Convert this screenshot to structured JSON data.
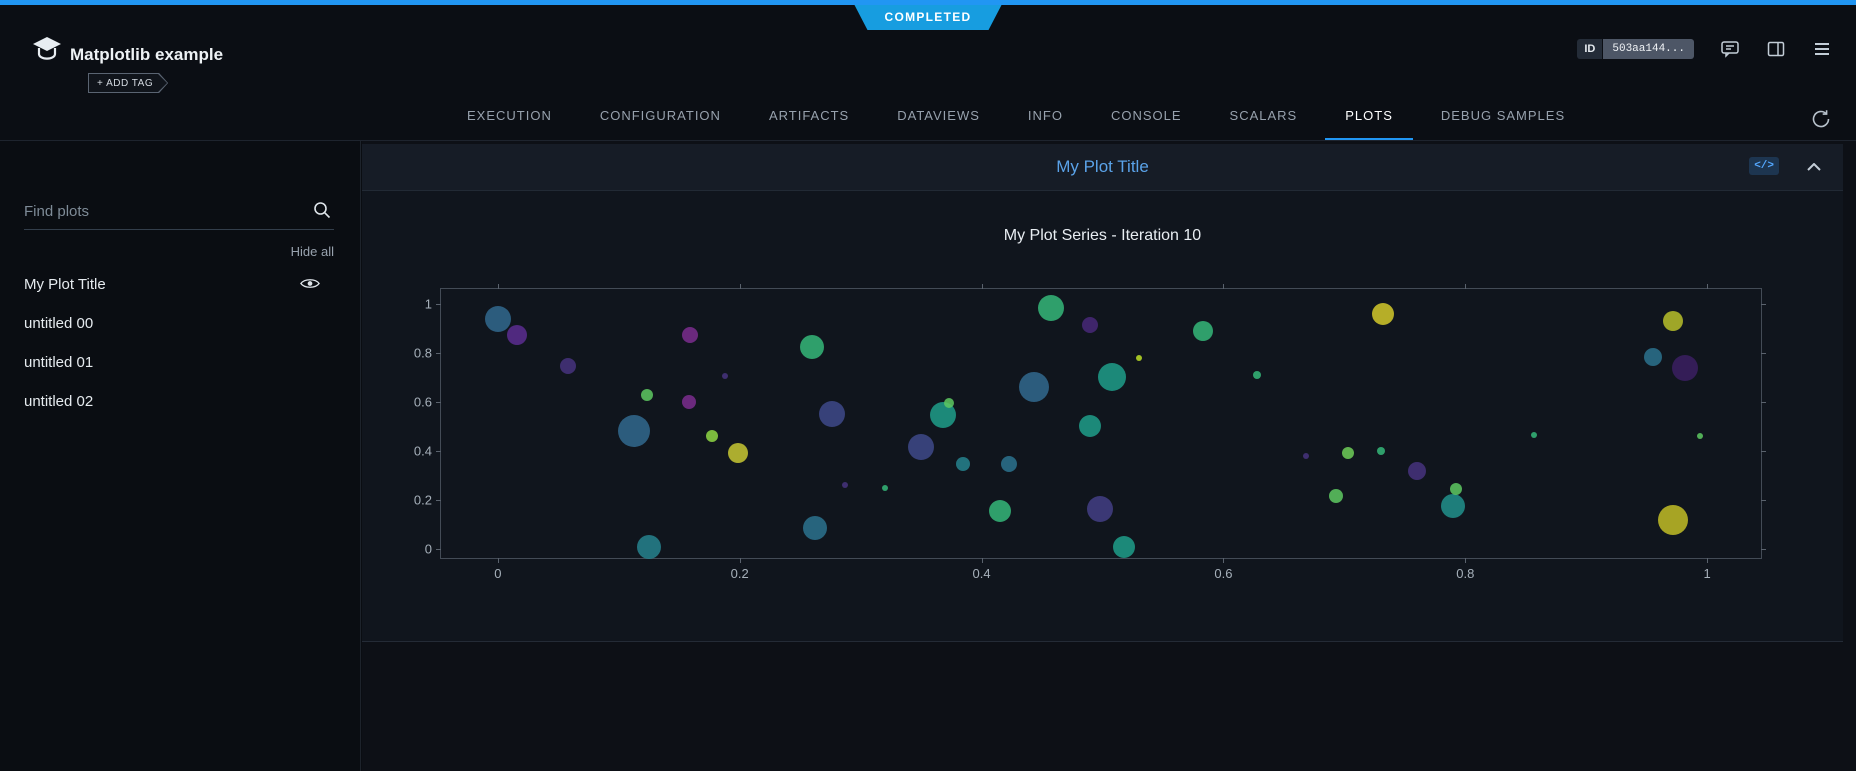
{
  "status_banner": {
    "label": "COMPLETED"
  },
  "header": {
    "title": "Matplotlib example",
    "add_tag_label": "+ ADD TAG",
    "id_badge": {
      "label": "ID",
      "value": "503aa144..."
    }
  },
  "tabs": [
    {
      "label": "EXECUTION"
    },
    {
      "label": "CONFIGURATION"
    },
    {
      "label": "ARTIFACTS"
    },
    {
      "label": "DATAVIEWS"
    },
    {
      "label": "INFO"
    },
    {
      "label": "CONSOLE"
    },
    {
      "label": "SCALARS"
    },
    {
      "label": "PLOTS",
      "active": true
    },
    {
      "label": "DEBUG SAMPLES"
    }
  ],
  "sidebar": {
    "search_placeholder": "Find plots",
    "hide_all_label": "Hide all",
    "plots": [
      {
        "label": "My Plot Title",
        "visible": true
      },
      {
        "label": "untitled 00"
      },
      {
        "label": "untitled 01"
      },
      {
        "label": "untitled 02"
      }
    ]
  },
  "plot_panel": {
    "title": "My Plot Title",
    "code_icon_glyph": "</>"
  },
  "chart_data": {
    "type": "scatter",
    "title": "My Plot Series - Iteration 10",
    "xlabel": "",
    "ylabel": "",
    "xlim": [
      -0.047,
      1.0445
    ],
    "ylim": [
      -0.0364,
      1.0608
    ],
    "x_ticks": [
      0,
      0.2,
      0.4,
      0.6,
      0.8,
      1
    ],
    "y_ticks": [
      0,
      0.2,
      0.4,
      0.6,
      0.8,
      1
    ],
    "grid": false,
    "legend": "none",
    "points": [
      {
        "x": 0.0,
        "y": 0.94,
        "r": 13,
        "c": "#31688e"
      },
      {
        "x": 0.016,
        "y": 0.875,
        "r": 10,
        "c": "#5c2d91"
      },
      {
        "x": 0.058,
        "y": 0.745,
        "r": 8,
        "c": "#46327e"
      },
      {
        "x": 0.113,
        "y": 0.48,
        "r": 16,
        "c": "#31688e"
      },
      {
        "x": 0.123,
        "y": 0.63,
        "r": 6,
        "c": "#5ec962"
      },
      {
        "x": 0.125,
        "y": 0.01,
        "r": 12,
        "c": "#26828e"
      },
      {
        "x": 0.159,
        "y": 0.875,
        "r": 8,
        "c": "#7b2d8e"
      },
      {
        "x": 0.158,
        "y": 0.6,
        "r": 7,
        "c": "#7b2d8e"
      },
      {
        "x": 0.177,
        "y": 0.46,
        "r": 6,
        "c": "#8fd744"
      },
      {
        "x": 0.188,
        "y": 0.705,
        "r": 3,
        "c": "#46327e"
      },
      {
        "x": 0.199,
        "y": 0.39,
        "r": 10,
        "c": "#c8c832"
      },
      {
        "x": 0.26,
        "y": 0.825,
        "r": 12,
        "c": "#35b779"
      },
      {
        "x": 0.276,
        "y": 0.55,
        "r": 13,
        "c": "#3e4989"
      },
      {
        "x": 0.262,
        "y": 0.085,
        "r": 12,
        "c": "#2c728e"
      },
      {
        "x": 0.287,
        "y": 0.26,
        "r": 3,
        "c": "#46327e"
      },
      {
        "x": 0.32,
        "y": 0.25,
        "r": 3,
        "c": "#35b779"
      },
      {
        "x": 0.35,
        "y": 0.415,
        "r": 13,
        "c": "#3e4989"
      },
      {
        "x": 0.368,
        "y": 0.545,
        "r": 13,
        "c": "#1f9e89"
      },
      {
        "x": 0.373,
        "y": 0.595,
        "r": 5,
        "c": "#5ec962"
      },
      {
        "x": 0.385,
        "y": 0.345,
        "r": 7,
        "c": "#26828e"
      },
      {
        "x": 0.415,
        "y": 0.155,
        "r": 11,
        "c": "#35b779"
      },
      {
        "x": 0.423,
        "y": 0.345,
        "r": 8,
        "c": "#2c728e"
      },
      {
        "x": 0.443,
        "y": 0.66,
        "r": 15,
        "c": "#31688e"
      },
      {
        "x": 0.457,
        "y": 0.985,
        "r": 13,
        "c": "#35b779"
      },
      {
        "x": 0.49,
        "y": 0.915,
        "r": 8,
        "c": "#482878"
      },
      {
        "x": 0.508,
        "y": 0.7,
        "r": 14,
        "c": "#1f9e89"
      },
      {
        "x": 0.49,
        "y": 0.5,
        "r": 11,
        "c": "#1f9e89"
      },
      {
        "x": 0.498,
        "y": 0.165,
        "r": 13,
        "c": "#433e85"
      },
      {
        "x": 0.518,
        "y": 0.01,
        "r": 11,
        "c": "#1f9e89"
      },
      {
        "x": 0.53,
        "y": 0.78,
        "r": 3,
        "c": "#bddf26"
      },
      {
        "x": 0.583,
        "y": 0.89,
        "r": 10,
        "c": "#35b779"
      },
      {
        "x": 0.628,
        "y": 0.71,
        "r": 4,
        "c": "#35b779"
      },
      {
        "x": 0.668,
        "y": 0.38,
        "r": 3,
        "c": "#46327e"
      },
      {
        "x": 0.693,
        "y": 0.215,
        "r": 7,
        "c": "#5ec962"
      },
      {
        "x": 0.703,
        "y": 0.39,
        "r": 6,
        "c": "#6ece58"
      },
      {
        "x": 0.73,
        "y": 0.4,
        "r": 4,
        "c": "#35b779"
      },
      {
        "x": 0.732,
        "y": 0.96,
        "r": 11,
        "c": "#d4c92a"
      },
      {
        "x": 0.76,
        "y": 0.32,
        "r": 9,
        "c": "#46327e"
      },
      {
        "x": 0.79,
        "y": 0.175,
        "r": 12,
        "c": "#21918c"
      },
      {
        "x": 0.792,
        "y": 0.245,
        "r": 6,
        "c": "#5ec962"
      },
      {
        "x": 0.857,
        "y": 0.465,
        "r": 3,
        "c": "#35b779"
      },
      {
        "x": 0.955,
        "y": 0.785,
        "r": 9,
        "c": "#2c728e"
      },
      {
        "x": 0.982,
        "y": 0.74,
        "r": 13,
        "c": "#3b1f62"
      },
      {
        "x": 0.972,
        "y": 0.93,
        "r": 10,
        "c": "#b8bf2a"
      },
      {
        "x": 0.972,
        "y": 0.12,
        "r": 15,
        "c": "#c2bd26"
      },
      {
        "x": 0.994,
        "y": 0.46,
        "r": 3,
        "c": "#5ec962"
      }
    ]
  },
  "colors": {
    "accent_blue": "#2196f3",
    "status_badge_blue": "#179de0",
    "panel_title_blue": "#5aa2e8",
    "page_bg": "#0a0d12",
    "panel_bg": "#10151d"
  }
}
